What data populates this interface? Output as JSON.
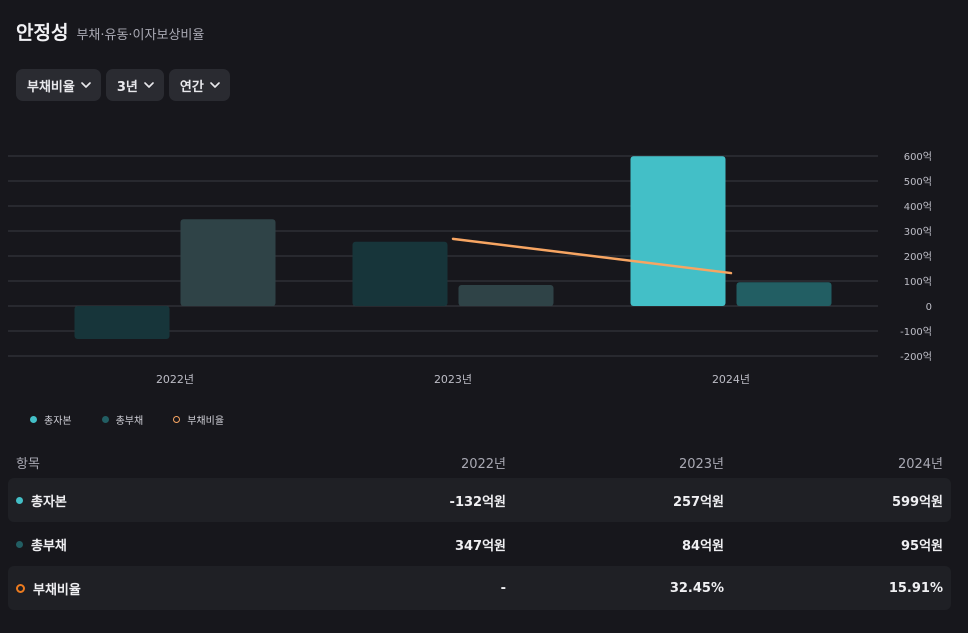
{
  "header": {
    "title": "안정성",
    "subtitle": "부채·유동·이자보상비율"
  },
  "filters": [
    {
      "label": "부채비율"
    },
    {
      "label": "3년"
    },
    {
      "label": "연간"
    }
  ],
  "chart_data": {
    "type": "bar",
    "categories": [
      "2022년",
      "2023년",
      "2024년"
    ],
    "series": [
      {
        "name": "총자본",
        "kind": "bar",
        "axis": "left",
        "values": [
          -132,
          257,
          599
        ],
        "color": "#43bfc7",
        "dim_color": "#17353a"
      },
      {
        "name": "총부채",
        "kind": "bar",
        "axis": "left",
        "values": [
          347,
          84,
          95
        ],
        "color": "#225e63",
        "dim_color": "#2f4347"
      },
      {
        "name": "부채비율",
        "kind": "line",
        "axis": "ratio",
        "values": [
          null,
          32.45,
          15.91
        ],
        "color": "#f7a562"
      }
    ],
    "highlight_index": 2,
    "y_ticks": [
      "600억",
      "500억",
      "400억",
      "300억",
      "200억",
      "100억",
      "0",
      "-100억",
      "-200억"
    ],
    "ylim": [
      -200,
      600
    ],
    "grid": true,
    "legend_position": "bottom-left"
  },
  "legend": [
    {
      "label": "총자본",
      "color": "#43bfc7"
    },
    {
      "label": "총부채",
      "color": "#225e63"
    },
    {
      "label": "부채비율",
      "color": "#f7a562"
    }
  ],
  "table": {
    "headers": [
      "항목",
      "2022년",
      "2023년",
      "2024년"
    ],
    "rows": [
      {
        "label": "총자본",
        "values": [
          "-132억원",
          "257억원",
          "599억원"
        ],
        "marker_color": "#43bfc7"
      },
      {
        "label": "총부채",
        "values": [
          "347억원",
          "84억원",
          "95억원"
        ],
        "marker_color": "#225e63"
      },
      {
        "label": "부채비율",
        "values": [
          "-",
          "32.45%",
          "15.91%"
        ],
        "marker_color": "#ec7b1f"
      }
    ]
  }
}
